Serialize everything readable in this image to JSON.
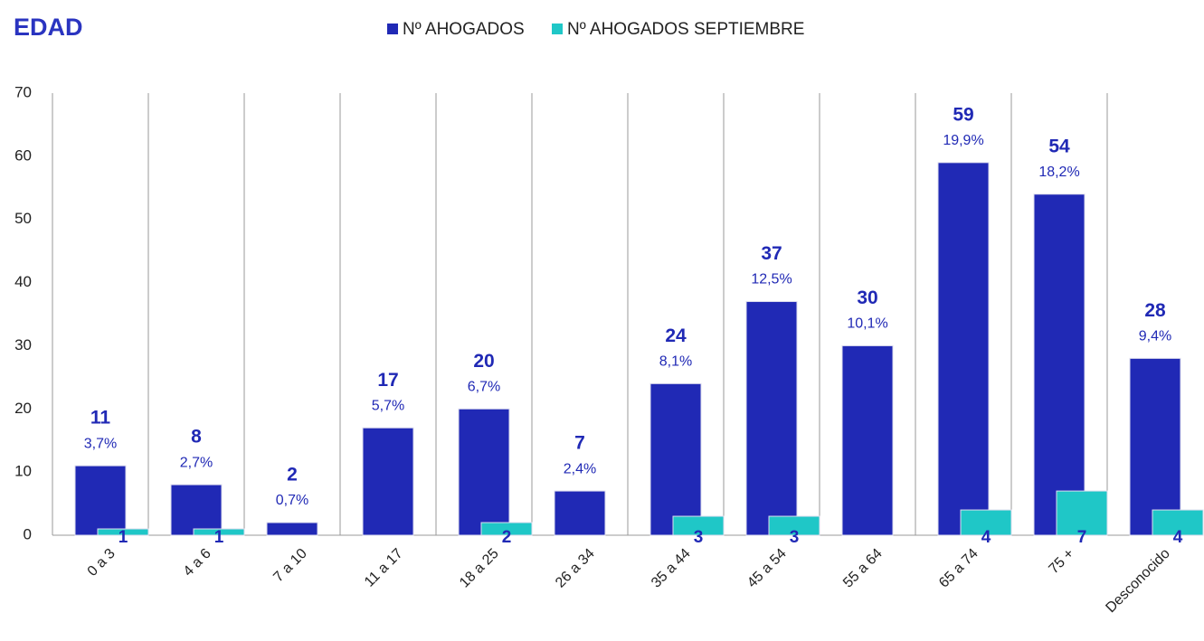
{
  "chart_data": {
    "type": "bar",
    "title": "EDAD",
    "categories": [
      "0 a 3",
      "4 a 6",
      "7 a 10",
      "11 a 17",
      "18 a 25",
      "26 a 34",
      "35 a 44",
      "45 a 54",
      "55 a 64",
      "65 a 74",
      "75 +",
      "Desconocido"
    ],
    "series": [
      {
        "name": "Nº AHOGADOS",
        "color": "#2029b5",
        "values": [
          11,
          8,
          2,
          17,
          20,
          7,
          24,
          37,
          30,
          59,
          54,
          28
        ],
        "percent_labels": [
          "3,7%",
          "2,7%",
          "0,7%",
          "5,7%",
          "6,7%",
          "2,4%",
          "8,1%",
          "12,5%",
          "10,1%",
          "19,9%",
          "18,2%",
          "9,4%"
        ]
      },
      {
        "name": "Nº AHOGADOS SEPTIEMBRE",
        "color": "#1fc7c7",
        "values": [
          1,
          1,
          null,
          null,
          2,
          null,
          3,
          3,
          null,
          4,
          7,
          4
        ]
      }
    ],
    "ylim": [
      0,
      70
    ],
    "yticks": [
      0,
      10,
      20,
      30,
      40,
      50,
      60,
      70
    ],
    "legend": "top"
  }
}
